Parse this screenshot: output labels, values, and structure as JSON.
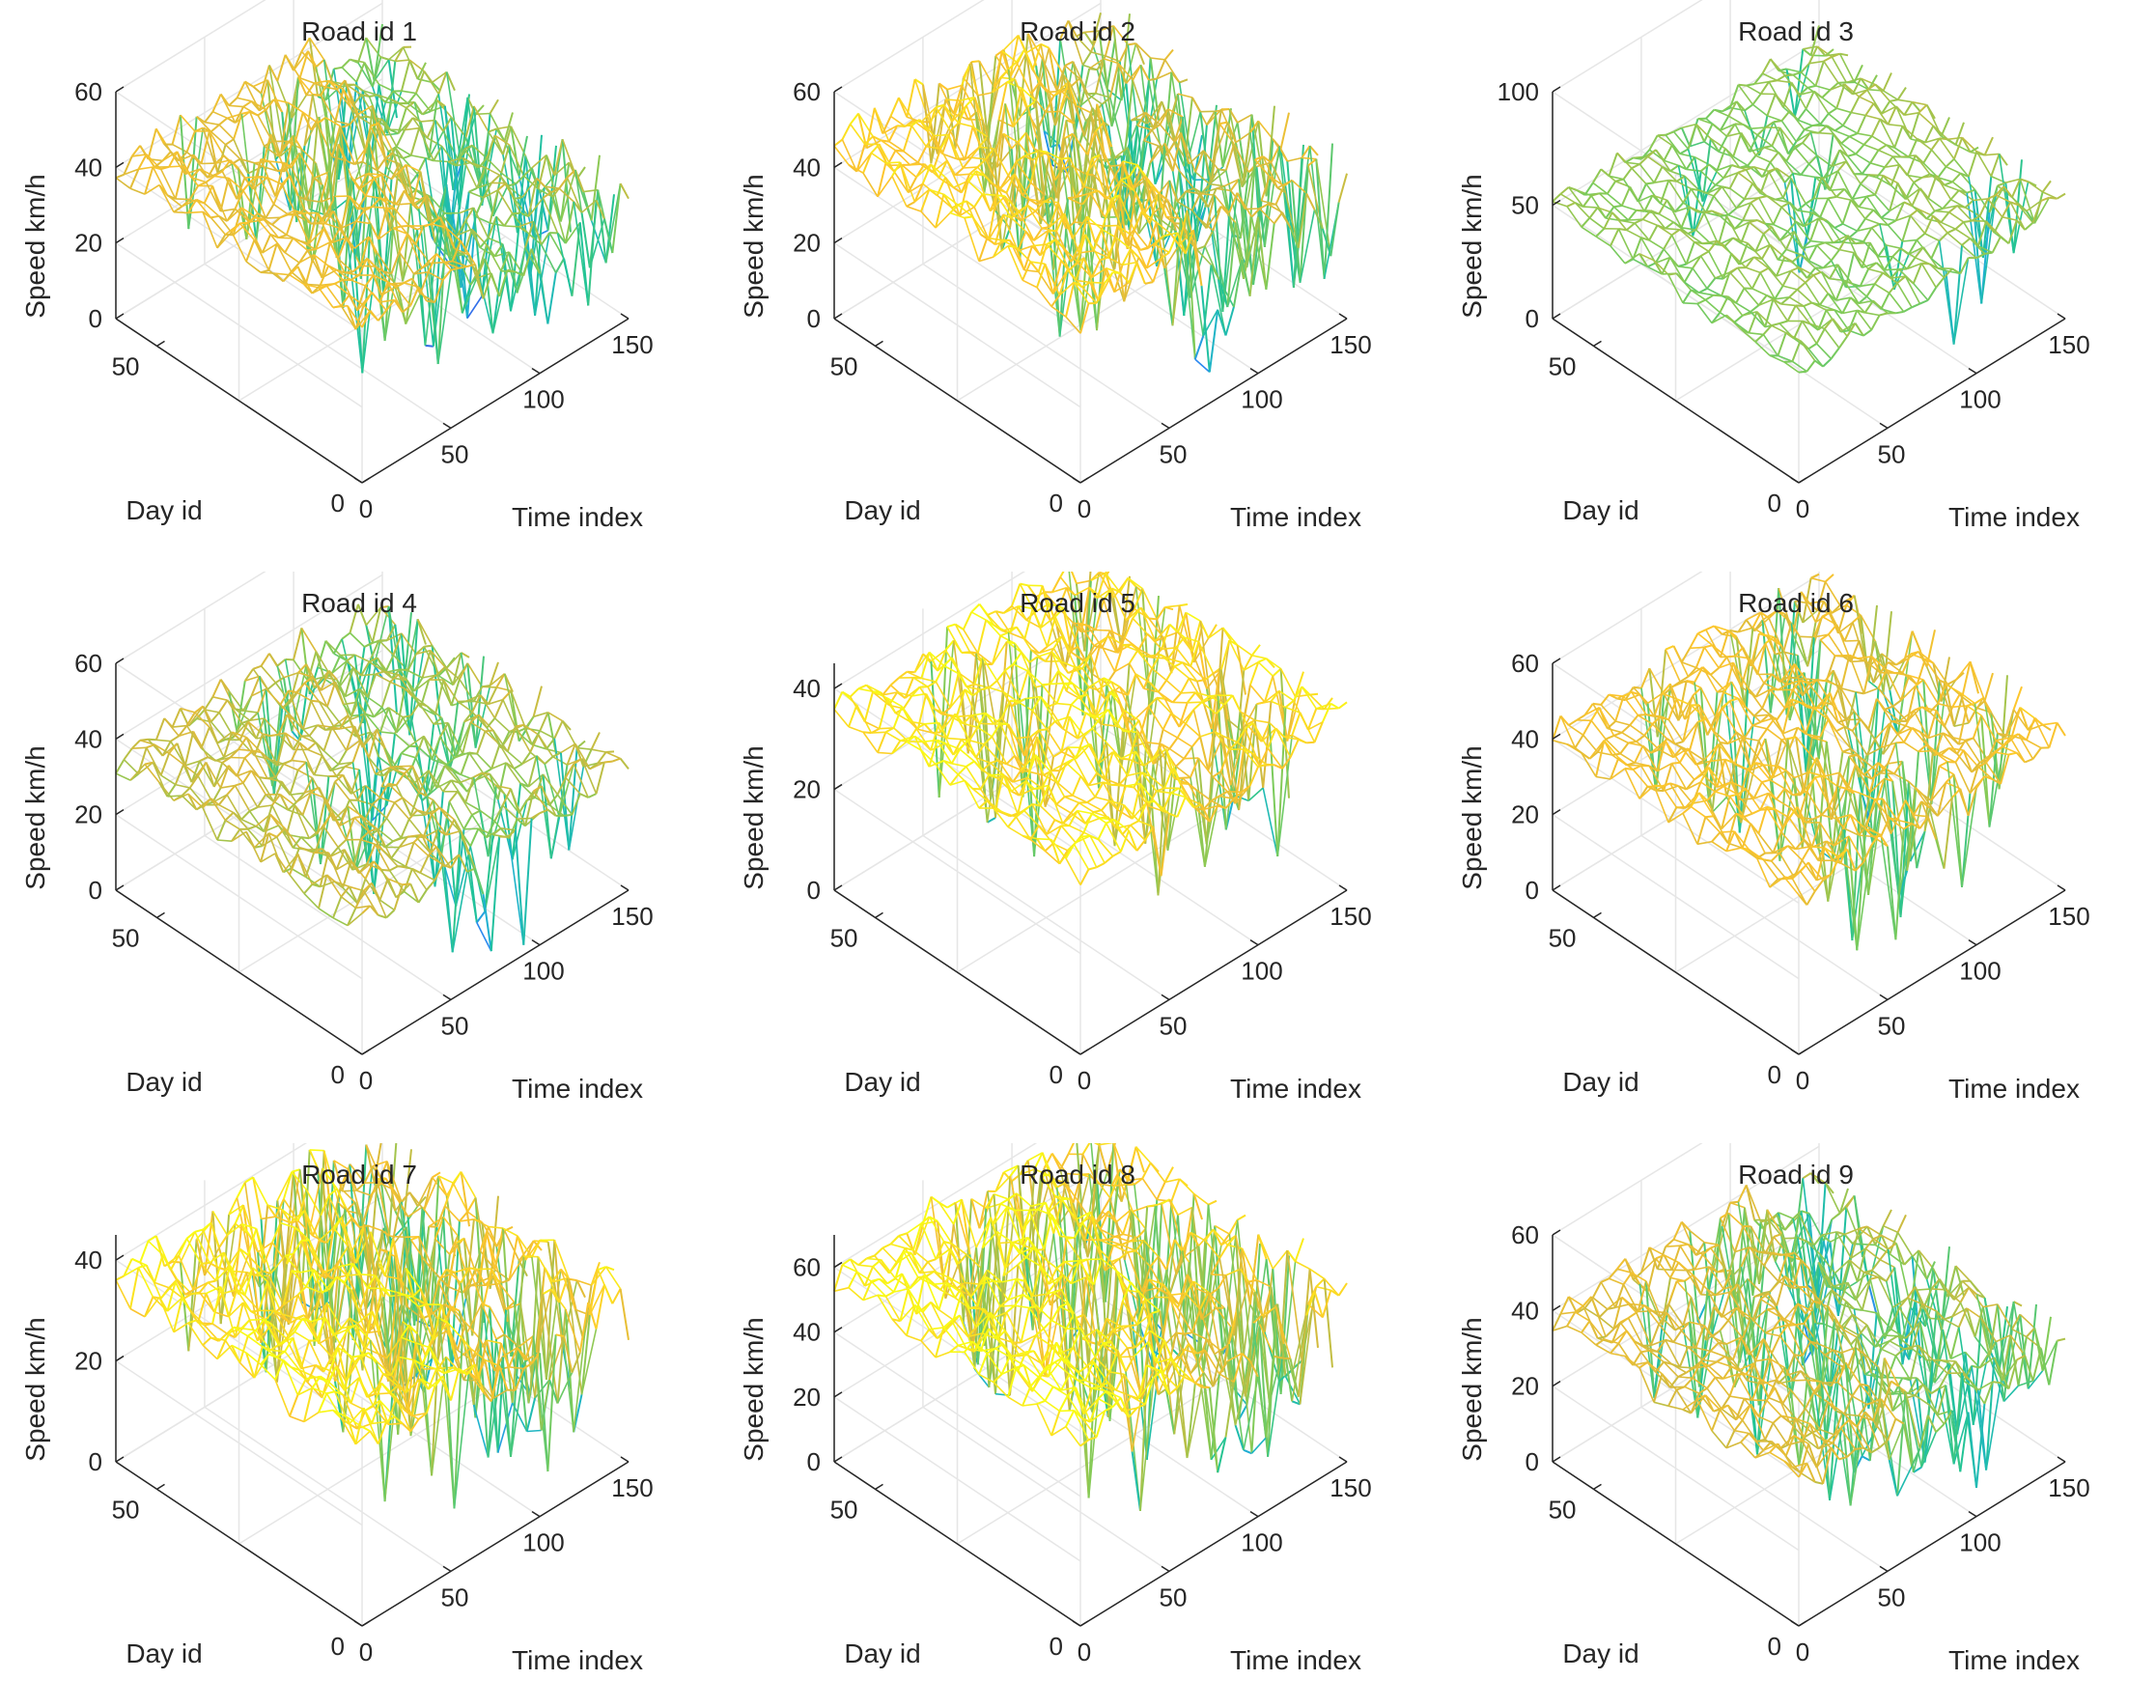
{
  "chart_data": [
    {
      "type": "surface",
      "title": "Road id 1",
      "zlabel": "Speed km/h",
      "xlabel": "Time index",
      "ylabel": "Day id",
      "zlim": [
        0,
        60
      ],
      "zticks": [
        "0",
        "20",
        "40",
        "60"
      ],
      "xticks": [
        "0",
        "50",
        "100",
        "150"
      ],
      "yticks": [
        "0",
        "50"
      ],
      "profile": {
        "early": 40,
        "late": 30,
        "earlyCover": 0.45,
        "dips": 0.25,
        "noise": 4
      }
    },
    {
      "type": "surface",
      "title": "Road id 2",
      "zlabel": "Speed km/h",
      "xlabel": "Time index",
      "ylabel": "Day id",
      "zlim": [
        0,
        60
      ],
      "zticks": [
        "0",
        "20",
        "40",
        "60"
      ],
      "xticks": [
        "0",
        "50",
        "100",
        "150"
      ],
      "yticks": [
        "0",
        "50"
      ],
      "profile": {
        "early": 45,
        "late": 35,
        "earlyCover": 0.45,
        "dips": 0.3,
        "noise": 5
      }
    },
    {
      "type": "surface",
      "title": "Road id 3",
      "zlabel": "Speed km/h",
      "xlabel": "Time index",
      "ylabel": "Day id",
      "zlim": [
        0,
        100
      ],
      "zticks": [
        "0",
        "50",
        "100"
      ],
      "xticks": [
        "0",
        "50",
        "100",
        "150"
      ],
      "yticks": [
        "0",
        "50"
      ],
      "profile": {
        "early": 50,
        "late": 50,
        "earlyCover": 0.5,
        "dips": 0.05,
        "noise": 5
      }
    },
    {
      "type": "surface",
      "title": "Road id 4",
      "zlabel": "Speed km/h",
      "xlabel": "Time index",
      "ylabel": "Day id",
      "zlim": [
        0,
        60
      ],
      "zticks": [
        "0",
        "20",
        "40",
        "60"
      ],
      "xticks": [
        "0",
        "50",
        "100",
        "150"
      ],
      "yticks": [
        "0",
        "50"
      ],
      "profile": {
        "early": 35,
        "late": 30,
        "earlyCover": 0.42,
        "dips": 0.12,
        "noise": 4
      }
    },
    {
      "type": "surface",
      "title": "Road id 5",
      "zlabel": "Speed km/h",
      "xlabel": "Time index",
      "ylabel": "Day id",
      "zlim": [
        0,
        45
      ],
      "zticks": [
        "0",
        "20",
        "40"
      ],
      "xticks": [
        "0",
        "50",
        "100",
        "150"
      ],
      "yticks": [
        "0",
        "50"
      ],
      "profile": {
        "early": 36,
        "late": 32,
        "earlyCover": 0.45,
        "dips": 0.12,
        "noise": 3
      }
    },
    {
      "type": "surface",
      "title": "Road id 6",
      "zlabel": "Speed km/h",
      "xlabel": "Time index",
      "ylabel": "Day id",
      "zlim": [
        0,
        60
      ],
      "zticks": [
        "0",
        "20",
        "40",
        "60"
      ],
      "xticks": [
        "0",
        "50",
        "100",
        "150"
      ],
      "yticks": [
        "0",
        "50"
      ],
      "profile": {
        "early": 42,
        "late": 38,
        "earlyCover": 0.45,
        "dips": 0.18,
        "noise": 4
      }
    },
    {
      "type": "surface",
      "title": "Road id 7",
      "zlabel": "Speed km/h",
      "xlabel": "Time index",
      "ylabel": "Day id",
      "zlim": [
        0,
        45
      ],
      "zticks": [
        "0",
        "20",
        "40"
      ],
      "xticks": [
        "0",
        "50",
        "100",
        "150"
      ],
      "yticks": [
        "0",
        "50"
      ],
      "profile": {
        "early": 36,
        "late": 30,
        "earlyCover": 0.45,
        "dips": 0.3,
        "noise": 4
      }
    },
    {
      "type": "surface",
      "title": "Road id 8",
      "zlabel": "Speed km/h",
      "xlabel": "Time index",
      "ylabel": "Day id",
      "zlim": [
        0,
        70
      ],
      "zticks": [
        "0",
        "20",
        "40",
        "60"
      ],
      "xticks": [
        "0",
        "50",
        "100",
        "150"
      ],
      "yticks": [
        "0",
        "50"
      ],
      "profile": {
        "early": 58,
        "late": 50,
        "earlyCover": 0.45,
        "dips": 0.3,
        "noise": 5
      }
    },
    {
      "type": "surface",
      "title": "Road id 9",
      "zlabel": "Speed km/h",
      "xlabel": "Time index",
      "ylabel": "Day id",
      "zlim": [
        0,
        60
      ],
      "zticks": [
        "0",
        "20",
        "40",
        "60"
      ],
      "xticks": [
        "0",
        "50",
        "100",
        "150"
      ],
      "yticks": [
        "0",
        "50"
      ],
      "profile": {
        "early": 38,
        "late": 30,
        "earlyCover": 0.45,
        "dips": 0.25,
        "noise": 4
      }
    }
  ],
  "colormap": [
    "#3e26a8",
    "#2e7ff7",
    "#1eb1d0",
    "#22c495",
    "#80cb58",
    "#d7ba3d",
    "#fdc52d",
    "#f9fb15"
  ]
}
